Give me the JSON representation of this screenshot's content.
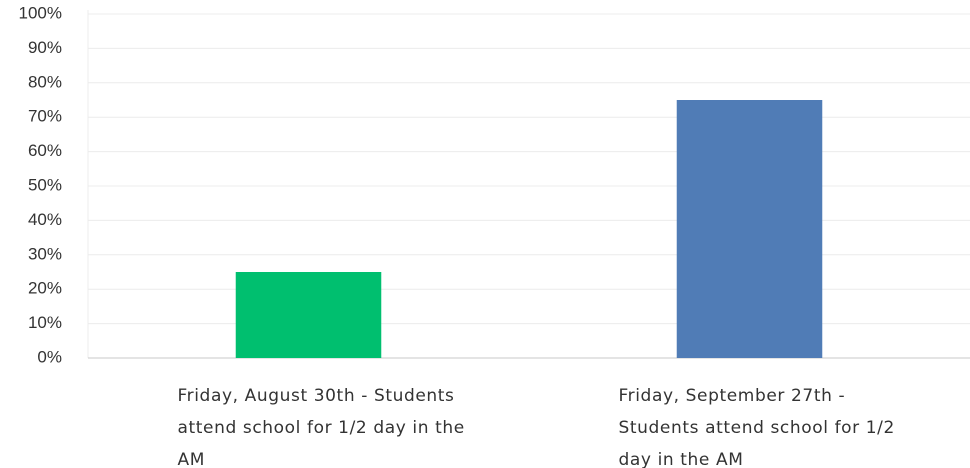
{
  "chart_data": {
    "type": "bar",
    "categories": [
      "Friday, August 30th - Students attend school for 1/2 day in the AM",
      "Friday, September 27th - Students attend school for 1/2 day in the AM"
    ],
    "values": [
      25,
      75
    ],
    "colors": [
      "#00bf6f",
      "#507cb6"
    ],
    "ylim": [
      0,
      100
    ],
    "yticks": [
      {
        "value": 0,
        "label": "0%"
      },
      {
        "value": 10,
        "label": "10%"
      },
      {
        "value": 20,
        "label": "20%"
      },
      {
        "value": 30,
        "label": "30%"
      },
      {
        "value": 40,
        "label": "40%"
      },
      {
        "value": 50,
        "label": "50%"
      },
      {
        "value": 60,
        "label": "60%"
      },
      {
        "value": 70,
        "label": "70%"
      },
      {
        "value": 80,
        "label": "80%"
      },
      {
        "value": 90,
        "label": "90%"
      },
      {
        "value": 100,
        "label": "100%"
      }
    ],
    "grid": true
  }
}
